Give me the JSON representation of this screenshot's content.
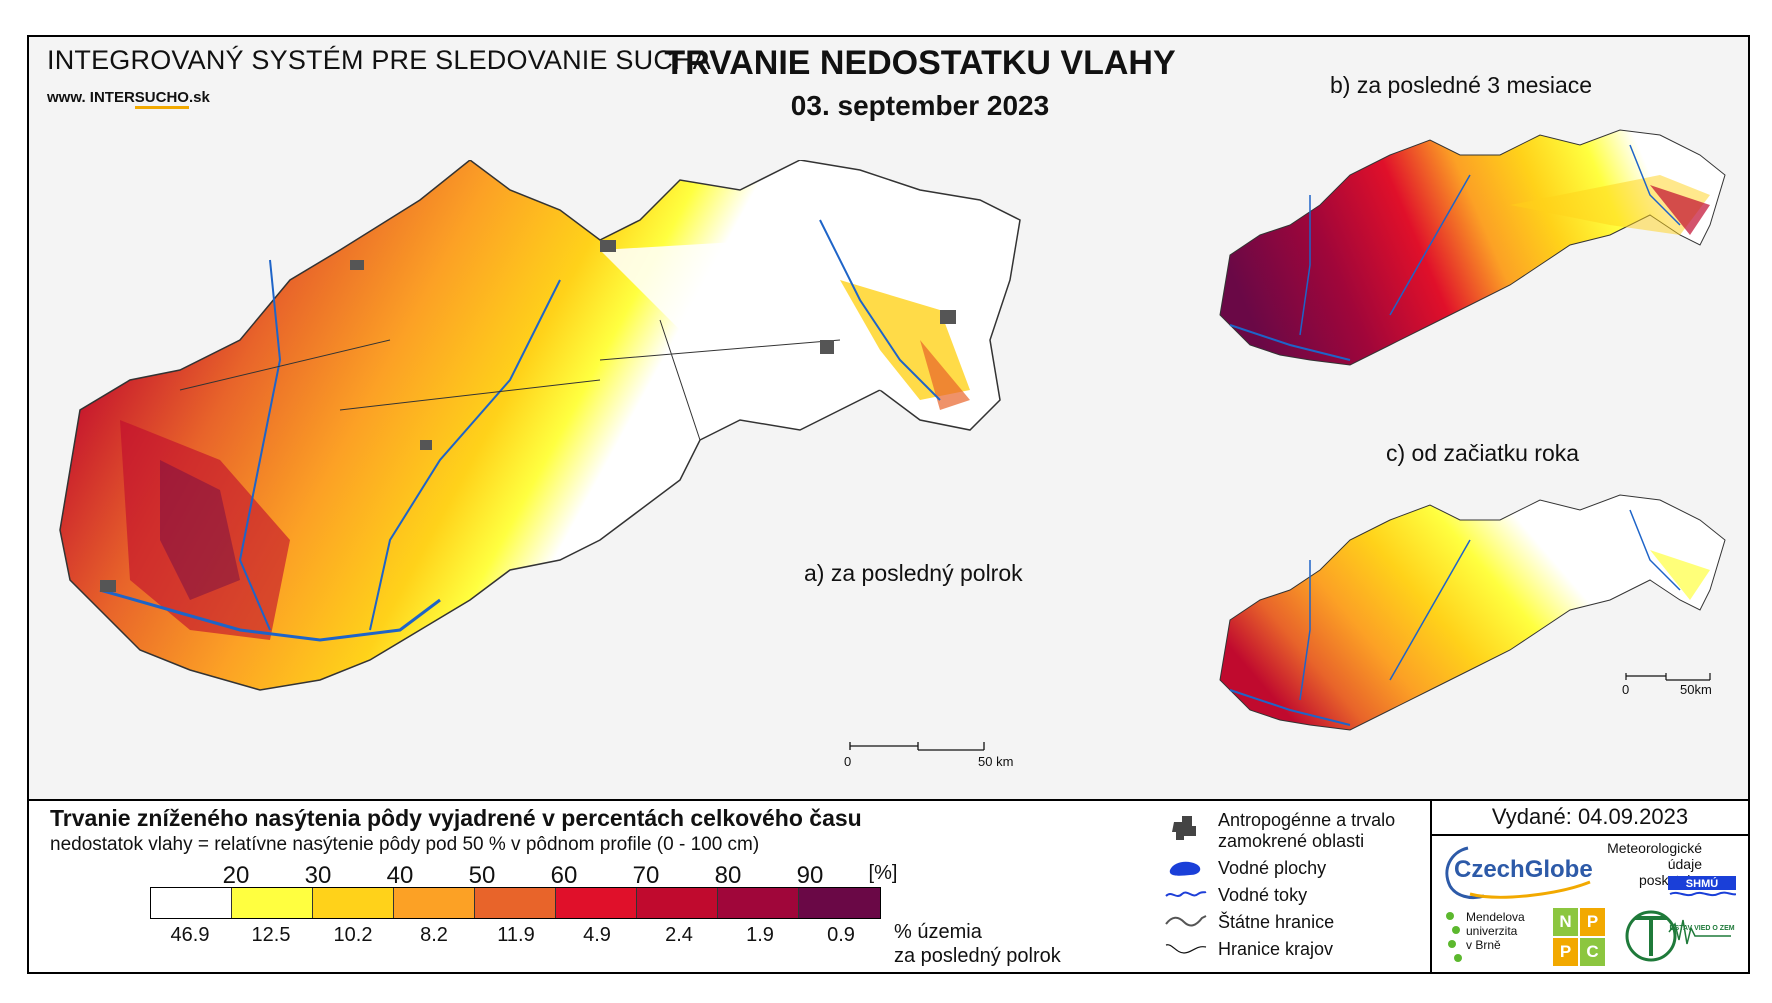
{
  "header": {
    "system_name": "INTEGROVANÝ SYSTÉM PRE SLEDOVANIE SUCHA",
    "url_prefix": "www. INTER",
    "url_brand": "SUCHO",
    "url_suffix": ".sk",
    "title": "TRVANIE NEDOSTATKU VLAHY",
    "date": "03. september 2023"
  },
  "maps": {
    "a": {
      "label": "a) za posledný polrok",
      "scale_start": "0",
      "scale_end": "50 km"
    },
    "b": {
      "label": "b) za posledné 3 mesiace"
    },
    "c": {
      "label": "c) od začiatku roka",
      "scale_start": "0",
      "scale_end": "50km"
    }
  },
  "legend": {
    "title": "Trvanie zníženého nasýtenia pôdy vyjadrené v percentách celkového času",
    "subtitle": "nedostatok vlahy = relatívne nasýtenie pôdy pod 50 % v pôdnom profile (0 - 100 cm)",
    "ticks": [
      "20",
      "30",
      "40",
      "50",
      "60",
      "70",
      "80",
      "90"
    ],
    "unit": "[%]",
    "classes": [
      {
        "color": "#ffffff",
        "share": "46.9"
      },
      {
        "color": "#ffff40",
        "share": "12.5"
      },
      {
        "color": "#ffd21a",
        "share": "10.2"
      },
      {
        "color": "#fca125",
        "share": "8.2"
      },
      {
        "color": "#e8642a",
        "share": "11.9"
      },
      {
        "color": "#e0102a",
        "share": "4.9"
      },
      {
        "color": "#c00a2e",
        "share": "2.4"
      },
      {
        "color": "#a0063a",
        "share": "1.9"
      },
      {
        "color": "#6a0846",
        "share": "0.9"
      }
    ],
    "share_unit_line1": "% územia",
    "share_unit_line2": "za posledný polrok"
  },
  "symbols": {
    "anthropogenic_line1": "Antropogénne a trvalo",
    "anthropogenic_line2": "zamokrené oblasti",
    "water_bodies": "Vodné plochy",
    "rivers": "Vodné toky",
    "state_border": "Štátne hranice",
    "region_border": "Hranice krajov"
  },
  "credits": {
    "issued": "Vydané: 04.09.2023",
    "czechglobe": "CzechGlobe",
    "meteo_line1": "Meteorologické",
    "meteo_line2": "údaje",
    "meteo_line3": "poskytuje:",
    "chmu": "SHMÚ",
    "mendel_line1": "Mendelova",
    "mendel_line2": "univerzita",
    "mendel_line3": "v Brně",
    "nppc": [
      "N",
      "P",
      "P",
      "C"
    ],
    "uvz": "ÚSTAV VIED O ZEMI"
  }
}
